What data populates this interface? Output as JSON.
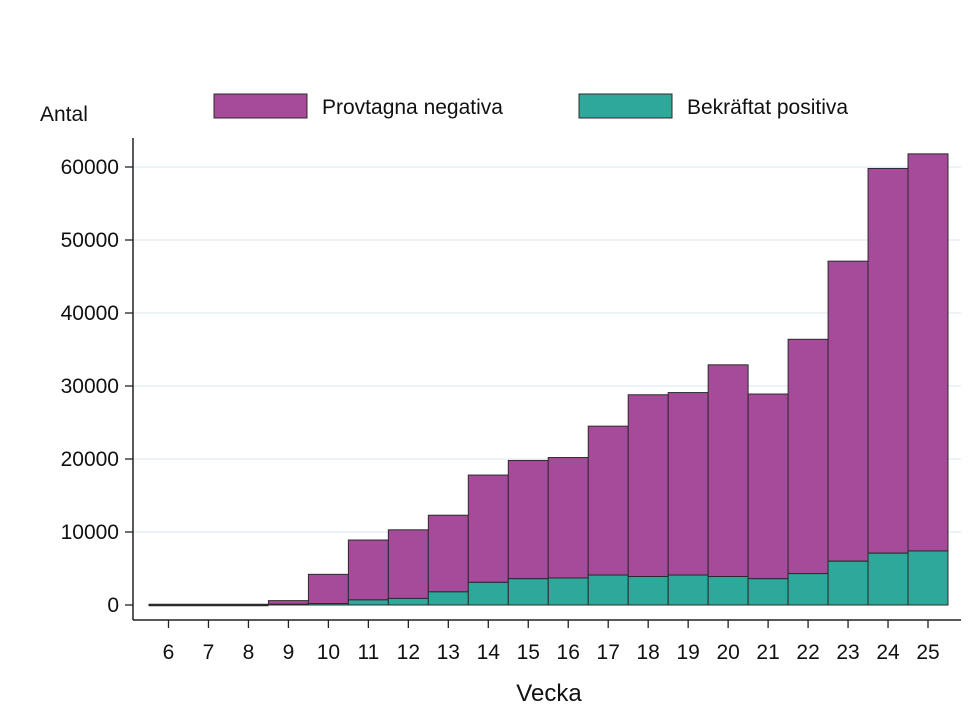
{
  "chart_data": {
    "type": "bar",
    "stacked": true,
    "ylabel": "Antal",
    "xlabel": "Vecka",
    "ylim": [
      0,
      65000
    ],
    "yticks": [
      0,
      10000,
      20000,
      30000,
      40000,
      50000,
      60000
    ],
    "grid": true,
    "legend_position": "top",
    "categories": [
      "6",
      "7",
      "8",
      "9",
      "10",
      "11",
      "12",
      "13",
      "14",
      "15",
      "16",
      "17",
      "18",
      "19",
      "20",
      "21",
      "22",
      "23",
      "24",
      "25"
    ],
    "series": [
      {
        "name": "Bekräftat positiva",
        "color": "#2EA89A",
        "values": [
          0,
          0,
          0,
          100,
          200,
          700,
          900,
          1800,
          3100,
          3600,
          3700,
          4100,
          3900,
          4100,
          3900,
          3600,
          4300,
          6000,
          7100,
          7400
        ]
      },
      {
        "name": "Provtagna negativa",
        "color": "#A64A9A",
        "values": [
          0,
          0,
          0,
          500,
          4000,
          8200,
          9400,
          10500,
          14700,
          16200,
          16500,
          20400,
          24900,
          25000,
          29000,
          25300,
          32100,
          41100,
          52700,
          54400
        ]
      }
    ]
  }
}
